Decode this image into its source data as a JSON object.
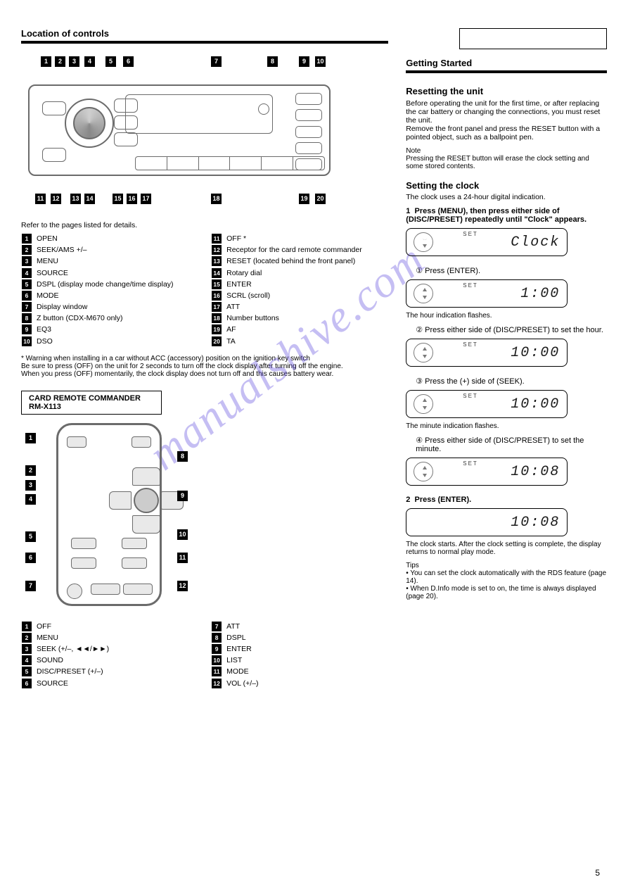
{
  "page_number": "5",
  "watermark": "manualshive.com",
  "left": {
    "title": "Location of controls",
    "legend_top": [
      {
        "n": "1",
        "t": "OPEN"
      },
      {
        "n": "2",
        "t": "SEEK/AMS +/–"
      },
      {
        "n": "3",
        "t": "MENU"
      },
      {
        "n": "4",
        "t": "SOURCE"
      },
      {
        "n": "5",
        "t": "DSPL (display mode change/time display)"
      },
      {
        "n": "6",
        "t": "MODE"
      },
      {
        "n": "7",
        "t": "Display window"
      },
      {
        "n": "8",
        "t": "Z button (CDX-M670 only)"
      },
      {
        "n": "9",
        "t": "EQ3"
      },
      {
        "n": "10",
        "t": "DSO"
      },
      {
        "n": "11",
        "t": "OFF *"
      },
      {
        "n": "12",
        "t": "Receptor for the card remote commander"
      },
      {
        "n": "13",
        "t": "RESET (located behind the front panel)"
      },
      {
        "n": "14",
        "t": "Rotary dial"
      },
      {
        "n": "15",
        "t": "ENTER"
      },
      {
        "n": "16",
        "t": "SCRL (scroll)"
      },
      {
        "n": "17",
        "t": "ATT"
      },
      {
        "n": "18",
        "t": "Number buttons"
      },
      {
        "n": "19",
        "t": "AF"
      },
      {
        "n": "20",
        "t": "TA"
      }
    ],
    "connecting_note": "Refer to the pages listed for details.",
    "warning": "* Warning when installing in a car without ACC (accessory) position on the ignition key switch\nBe sure to press (OFF) on the unit for 2 seconds to turn off the clock display after turning off the engine.\nWhen you press (OFF) momentarily, the clock display does not turn off and this causes battery wear.",
    "remote_title": "CARD REMOTE COMMANDER RM-X113",
    "remote_legend": [
      {
        "n": "1",
        "t": "OFF"
      },
      {
        "n": "2",
        "t": "MENU"
      },
      {
        "n": "3",
        "t": "SEEK (+/–, ◄◄/►►)"
      },
      {
        "n": "4",
        "t": "SOUND"
      },
      {
        "n": "5",
        "t": "DISC/PRESET (+/–)"
      },
      {
        "n": "6",
        "t": "SOURCE"
      },
      {
        "n": "7",
        "t": "ATT"
      },
      {
        "n": "8",
        "t": "DSPL"
      },
      {
        "n": "9",
        "t": "ENTER"
      },
      {
        "n": "10",
        "t": "LIST"
      },
      {
        "n": "11",
        "t": "MODE"
      },
      {
        "n": "12",
        "t": "VOL (+/–)"
      }
    ]
  },
  "right": {
    "getting_started": "Getting Started",
    "resetting_h": "Resetting the unit",
    "resetting_p": "Before operating the unit for the first time, or after replacing the car battery or changing the connections, you must reset the unit.\nRemove the front panel and press the RESET button with a pointed object, such as a ballpoint pen.",
    "resetting_note": "Note\nPressing the RESET button will erase the clock setting and some stored contents.",
    "clock_h": "Setting the clock",
    "clock_p": "The clock uses a 24-hour digital indication.",
    "steps": [
      {
        "no": "1",
        "t": "Press (MENU), then press either side of (DISC/PRESET) repeatedly until \"Clock\" appears.",
        "lcd_set": "SET",
        "lcd": "Clock",
        "rays": true
      },
      {
        "sub": "① Press (ENTER).",
        "lcd_set": "SET",
        "lcd": "1:00",
        "note": "The hour indication flashes."
      },
      {
        "sub": "② Press either side of (DISC/PRESET) to set the hour.",
        "lcd_set": "SET",
        "lcd": "10:00"
      },
      {
        "sub": "③ Press the (+) side of (SEEK).",
        "lcd_set": "SET",
        "lcd": "10:00",
        "note": "The minute indication flashes."
      },
      {
        "sub": "④ Press either side of (DISC/PRESET) to set the minute.",
        "lcd_set": "SET",
        "lcd": "10:08"
      },
      {
        "no": "2",
        "t": "Press (ENTER).",
        "lcd": "10:08",
        "note": "The clock starts. After the clock setting is complete, the display returns to normal play mode.",
        "nodial": true
      }
    ],
    "tips": "Tips\n• You can set the clock automatically with the RDS feature (page 14).\n• When D.Info mode is set to on, the time is always displayed (page 20)."
  },
  "colors": {
    "line": "#6b6b6b",
    "text": "#000000",
    "bg": "#ffffff"
  }
}
